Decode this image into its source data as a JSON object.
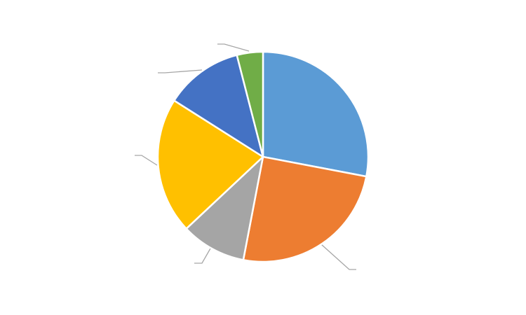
{
  "chart_data": {
    "type": "pie",
    "values": [
      28,
      25,
      10,
      21,
      12,
      4
    ],
    "colors": [
      "#5b9bd5",
      "#ed7d31",
      "#a5a5a5",
      "#ffc000",
      "#4472c4",
      "#70ad47"
    ]
  }
}
